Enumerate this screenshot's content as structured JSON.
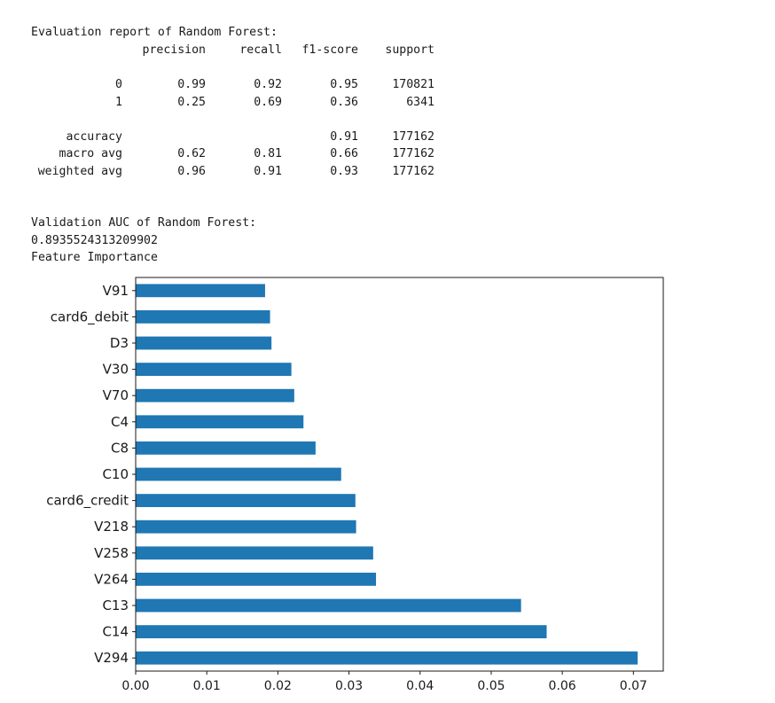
{
  "report": {
    "title": "Evaluation report of Random Forest:",
    "headers": [
      "",
      "precision",
      "recall",
      "f1-score",
      "support"
    ],
    "rows": [
      [
        "0",
        "0.99",
        "0.92",
        "0.95",
        "170821"
      ],
      [
        "1",
        "0.25",
        "0.69",
        "0.36",
        "6341"
      ],
      null,
      [
        "accuracy",
        "",
        "",
        "0.91",
        "177162"
      ],
      [
        "macro avg",
        "0.62",
        "0.81",
        "0.66",
        "177162"
      ],
      [
        "weighted avg",
        "0.96",
        "0.91",
        "0.93",
        "177162"
      ]
    ]
  },
  "auc": {
    "title": "Validation AUC of Random Forest:",
    "value": "0.8935524313209902"
  },
  "feature_importance_title": "Feature Importance",
  "chart_data": {
    "type": "bar",
    "orientation": "horizontal",
    "categories": [
      "V294",
      "C14",
      "C13",
      "V264",
      "V258",
      "V218",
      "card6_credit",
      "C10",
      "C8",
      "C4",
      "V70",
      "V30",
      "D3",
      "card6_debit",
      "V91"
    ],
    "values": [
      0.0706,
      0.0578,
      0.0542,
      0.0338,
      0.0334,
      0.031,
      0.0309,
      0.0289,
      0.0253,
      0.0236,
      0.0223,
      0.0219,
      0.0191,
      0.0189,
      0.0182
    ],
    "xlim": [
      0,
      0.0742
    ],
    "xticks": [
      0.0,
      0.01,
      0.02,
      0.03,
      0.04,
      0.05,
      0.06,
      0.07
    ],
    "xtick_labels": [
      "0.00",
      "0.01",
      "0.02",
      "0.03",
      "0.04",
      "0.05",
      "0.06",
      "0.07"
    ],
    "bar_color": "#1f77b4",
    "title": "",
    "xlabel": "",
    "ylabel": "",
    "grid": false,
    "legend": false
  }
}
